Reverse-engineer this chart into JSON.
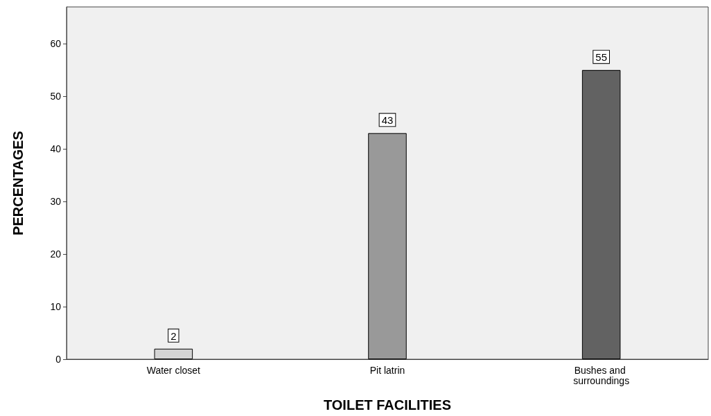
{
  "chart_data": {
    "type": "bar",
    "xlabel": "TOILET FACILITIES",
    "ylabel": "PERCENTAGES",
    "categories": [
      "Water closet",
      "Pit latrin",
      "Bushes and surroundings"
    ],
    "values": [
      2,
      43,
      55
    ],
    "colors": [
      "#d4d4d4",
      "#999999",
      "#626262"
    ],
    "ylim": [
      0,
      67
    ],
    "yticks": [
      0,
      10,
      20,
      30,
      40,
      50,
      60
    ],
    "grid": false,
    "data_labels": true
  }
}
